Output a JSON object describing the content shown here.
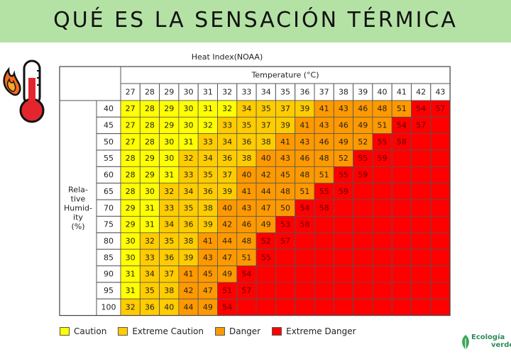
{
  "header": {
    "title": "QUÉ ES LA SENSACIÓN TÉRMICA"
  },
  "icons": {
    "left": "thermometer-flame-icon",
    "logo": "ecologia-verde-logo"
  },
  "logo": {
    "line1": "Ecología",
    "line2": "verde"
  },
  "colors": {
    "banner": "#b4e2a5",
    "caution": "#ffff00",
    "extreme_caution": "#ffcc00",
    "danger": "#ff9900",
    "extreme_danger": "#ff0000"
  },
  "chart_data": {
    "type": "table",
    "title": "Heat Index(NOAA)",
    "column_header": "Temperature (°C)",
    "row_header_lines": [
      "Rela-",
      "tive",
      "Humid-",
      "ity",
      "(%)"
    ],
    "temperatures": [
      27,
      28,
      29,
      30,
      31,
      32,
      33,
      34,
      35,
      36,
      37,
      38,
      39,
      40,
      41,
      42,
      43
    ],
    "humidities": [
      40,
      45,
      50,
      55,
      60,
      65,
      70,
      75,
      80,
      85,
      90,
      95,
      100
    ],
    "values": [
      [
        27,
        28,
        29,
        30,
        31,
        32,
        34,
        35,
        37,
        39,
        41,
        43,
        46,
        48,
        51,
        54,
        57
      ],
      [
        27,
        28,
        29,
        30,
        32,
        33,
        35,
        37,
        39,
        41,
        43,
        46,
        49,
        51,
        54,
        57,
        null
      ],
      [
        27,
        28,
        30,
        31,
        33,
        34,
        36,
        38,
        41,
        43,
        46,
        49,
        52,
        55,
        58,
        null,
        null
      ],
      [
        28,
        29,
        30,
        32,
        34,
        36,
        38,
        40,
        43,
        46,
        48,
        52,
        55,
        59,
        null,
        null,
        null
      ],
      [
        28,
        29,
        31,
        33,
        35,
        37,
        40,
        42,
        45,
        48,
        51,
        55,
        59,
        null,
        null,
        null,
        null
      ],
      [
        28,
        30,
        32,
        34,
        36,
        39,
        41,
        44,
        48,
        51,
        55,
        59,
        null,
        null,
        null,
        null,
        null
      ],
      [
        29,
        31,
        33,
        35,
        38,
        40,
        43,
        47,
        50,
        54,
        58,
        null,
        null,
        null,
        null,
        null,
        null
      ],
      [
        29,
        31,
        34,
        36,
        39,
        42,
        46,
        49,
        53,
        58,
        null,
        null,
        null,
        null,
        null,
        null,
        null
      ],
      [
        30,
        32,
        35,
        38,
        41,
        44,
        48,
        52,
        57,
        null,
        null,
        null,
        null,
        null,
        null,
        null,
        null
      ],
      [
        30,
        33,
        36,
        39,
        43,
        47,
        51,
        55,
        null,
        null,
        null,
        null,
        null,
        null,
        null,
        null,
        null
      ],
      [
        31,
        34,
        37,
        41,
        45,
        49,
        54,
        null,
        null,
        null,
        null,
        null,
        null,
        null,
        null,
        null,
        null
      ],
      [
        31,
        35,
        38,
        42,
        47,
        51,
        57,
        null,
        null,
        null,
        null,
        null,
        null,
        null,
        null,
        null,
        null
      ],
      [
        32,
        36,
        40,
        44,
        49,
        54,
        null,
        null,
        null,
        null,
        null,
        null,
        null,
        null,
        null,
        null,
        null
      ]
    ],
    "categories": [
      [
        0,
        0,
        0,
        0,
        0,
        0,
        1,
        1,
        1,
        1,
        2,
        2,
        2,
        2,
        2,
        3,
        3
      ],
      [
        0,
        0,
        0,
        0,
        0,
        1,
        1,
        1,
        1,
        2,
        2,
        2,
        2,
        2,
        3,
        3,
        3
      ],
      [
        0,
        0,
        0,
        0,
        1,
        1,
        1,
        1,
        2,
        2,
        2,
        2,
        2,
        3,
        3,
        3,
        3
      ],
      [
        0,
        0,
        0,
        1,
        1,
        1,
        1,
        2,
        2,
        2,
        2,
        2,
        3,
        3,
        3,
        3,
        3
      ],
      [
        0,
        0,
        0,
        1,
        1,
        1,
        2,
        2,
        2,
        2,
        2,
        3,
        3,
        3,
        3,
        3,
        3
      ],
      [
        0,
        0,
        1,
        1,
        1,
        1,
        2,
        2,
        2,
        2,
        3,
        3,
        3,
        3,
        3,
        3,
        3
      ],
      [
        0,
        0,
        1,
        1,
        1,
        2,
        2,
        2,
        2,
        3,
        3,
        3,
        3,
        3,
        3,
        3,
        3
      ],
      [
        0,
        0,
        1,
        1,
        1,
        2,
        2,
        2,
        3,
        3,
        3,
        3,
        3,
        3,
        3,
        3,
        3
      ],
      [
        0,
        1,
        1,
        1,
        2,
        2,
        2,
        3,
        3,
        3,
        3,
        3,
        3,
        3,
        3,
        3,
        3
      ],
      [
        0,
        1,
        1,
        1,
        2,
        2,
        2,
        3,
        3,
        3,
        3,
        3,
        3,
        3,
        3,
        3,
        3
      ],
      [
        0,
        1,
        1,
        2,
        2,
        2,
        3,
        3,
        3,
        3,
        3,
        3,
        3,
        3,
        3,
        3,
        3
      ],
      [
        0,
        1,
        1,
        2,
        2,
        3,
        3,
        3,
        3,
        3,
        3,
        3,
        3,
        3,
        3,
        3,
        3
      ],
      [
        1,
        1,
        1,
        2,
        2,
        3,
        3,
        3,
        3,
        3,
        3,
        3,
        3,
        3,
        3,
        3,
        3
      ]
    ],
    "legend": [
      {
        "label": "Caution",
        "color": "#ffff00"
      },
      {
        "label": "Extreme Caution",
        "color": "#ffcc00"
      },
      {
        "label": "Danger",
        "color": "#ff9900"
      },
      {
        "label": "Extreme Danger",
        "color": "#ff0000"
      }
    ]
  }
}
